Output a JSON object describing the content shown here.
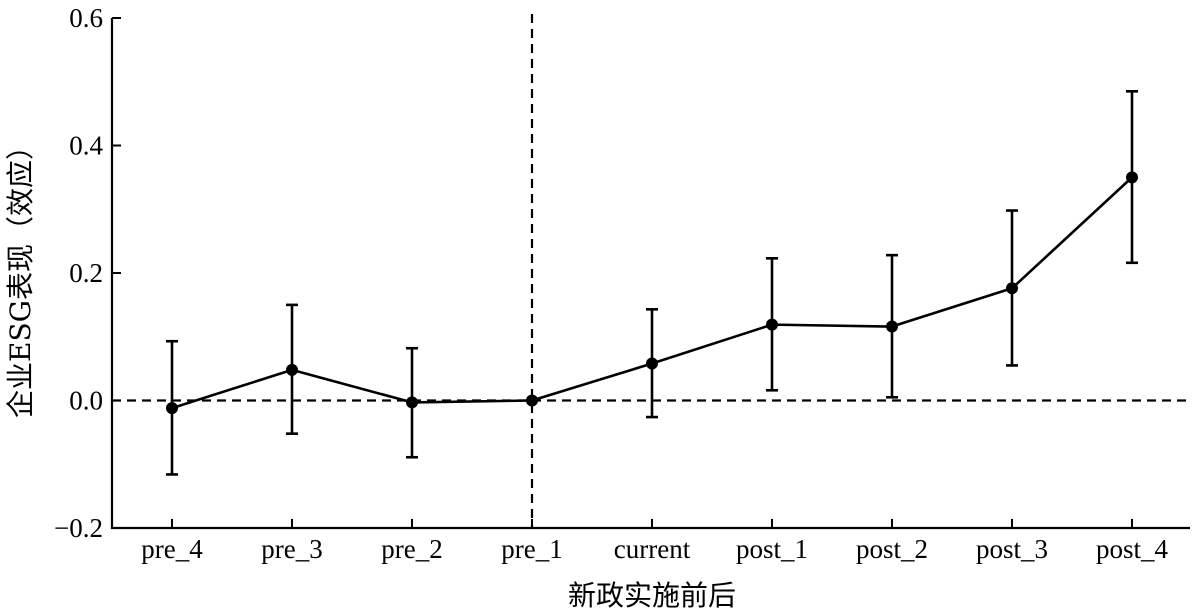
{
  "chart_data": {
    "type": "line",
    "title": "",
    "xlabel": "新政实施前后",
    "ylabel": "企业ESG表现（效应）",
    "categories": [
      "pre_4",
      "pre_3",
      "pre_2",
      "pre_1",
      "current",
      "post_1",
      "post_2",
      "post_3",
      "post_4"
    ],
    "series": [
      {
        "name": "企业ESG表现",
        "values": [
          -0.012,
          0.048,
          -0.003,
          0.0,
          0.058,
          0.119,
          0.116,
          0.176,
          0.35
        ],
        "ci_lower": [
          -0.116,
          -0.052,
          -0.089,
          0.0,
          -0.026,
          0.016,
          0.005,
          0.055,
          0.216
        ],
        "ci_upper": [
          0.093,
          0.15,
          0.082,
          0.0,
          0.143,
          0.223,
          0.228,
          0.298,
          0.485
        ]
      }
    ],
    "ylim": [
      -0.2,
      0.6
    ],
    "yticks": [
      -0.2,
      0.0,
      0.2,
      0.4,
      0.6
    ],
    "ytick_labels": [
      "−0.2",
      "0.0",
      "0.2",
      "0.4",
      "0.6"
    ],
    "reference_line_y": 0.0,
    "reference_line_category": "pre_1",
    "grid": false,
    "colors": {
      "line": "#000000",
      "background": "#ffffff"
    }
  }
}
